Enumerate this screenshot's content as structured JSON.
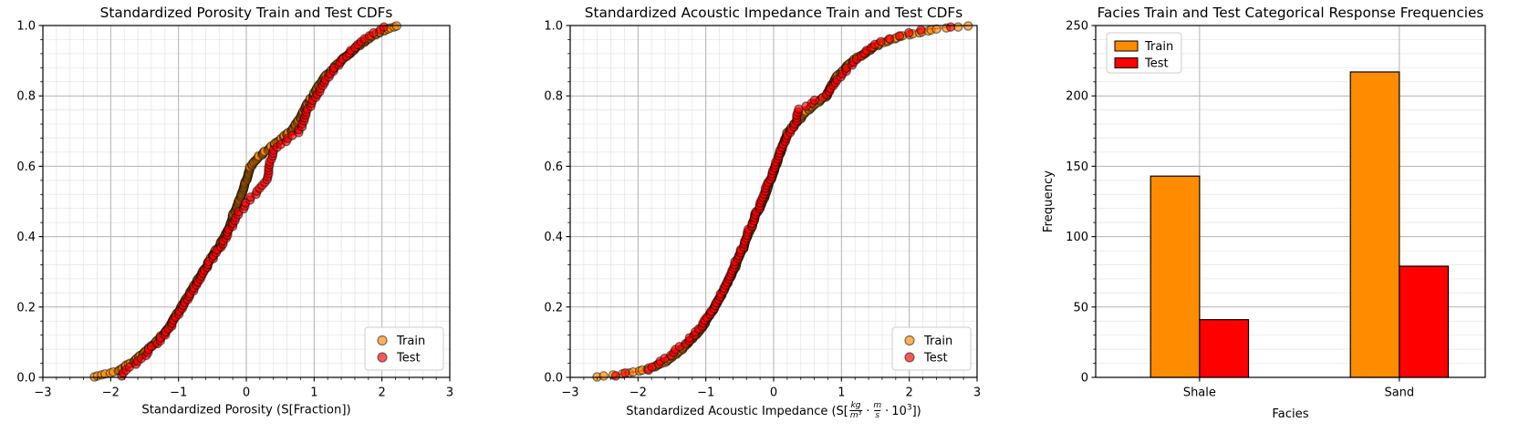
{
  "figure": {
    "background": "#ffffff",
    "text_color": "#000000",
    "grid_major_color": "#b2b2b2",
    "grid_minor_color": "#e3e3e3",
    "spine_color": "#000000"
  },
  "chart_data": [
    {
      "type": "scatter_cdf",
      "title": "Standardized Porosity Train and Test CDFs",
      "xlabel": "Standardized Porosity (S[Fraction])",
      "ylabel": "",
      "xlim": [
        -3,
        3
      ],
      "ylim": [
        0,
        1
      ],
      "xticks": [
        -3,
        -2,
        -1,
        0,
        1,
        2,
        3
      ],
      "xtick_labels": [
        "−3",
        "−2",
        "−1",
        "0",
        "1",
        "2",
        "3"
      ],
      "yticks": [
        0,
        0.2,
        0.4,
        0.6,
        0.8,
        1
      ],
      "ytick_labels": [
        "0.0",
        "0.2",
        "0.4",
        "0.6",
        "0.8",
        "1.0"
      ],
      "x_minor_step": 0.2,
      "y_minor_step": 0.04,
      "grid": true,
      "legend": {
        "loc": "lower right",
        "marker": "circle",
        "labels": [
          "Train",
          "Test"
        ]
      },
      "series": [
        {
          "name": "Train",
          "color": "#ff8c00",
          "n_points": 360,
          "quantile_p": [
            0,
            0.01,
            0.02,
            0.05,
            0.08,
            0.1,
            0.15,
            0.2,
            0.25,
            0.3,
            0.35,
            0.4,
            0.45,
            0.5,
            0.55,
            0.6,
            0.63,
            0.67,
            0.7,
            0.75,
            0.8,
            0.85,
            0.9,
            0.95,
            0.98,
            1
          ],
          "quantile_x": [
            -2.25,
            -2.06,
            -1.87,
            -1.63,
            -1.45,
            -1.33,
            -1.12,
            -0.96,
            -0.8,
            -0.64,
            -0.49,
            -0.31,
            -0.21,
            -0.12,
            -0.02,
            0.06,
            0.2,
            0.47,
            0.66,
            0.83,
            0.97,
            1.15,
            1.38,
            1.7,
            1.95,
            2.25
          ]
        },
        {
          "name": "Test",
          "color": "#ff0000",
          "n_points": 120,
          "quantile_p": [
            0,
            0.02,
            0.05,
            0.08,
            0.1,
            0.15,
            0.2,
            0.25,
            0.3,
            0.35,
            0.4,
            0.45,
            0.5,
            0.53,
            0.56,
            0.6,
            0.65,
            0.7,
            0.75,
            0.8,
            0.85,
            0.9,
            0.95,
            0.98,
            1
          ],
          "quantile_x": [
            -1.83,
            -1.78,
            -1.55,
            -1.42,
            -1.3,
            -1.1,
            -0.95,
            -0.78,
            -0.62,
            -0.47,
            -0.28,
            -0.18,
            0.02,
            0.18,
            0.31,
            0.33,
            0.42,
            0.78,
            0.88,
            1.02,
            1.18,
            1.4,
            1.65,
            1.9,
            2.06
          ]
        }
      ]
    },
    {
      "type": "scatter_cdf",
      "title": "Standardized Acoustic Impedance Train and Test CDFs",
      "xlabel": "Standardized Acoustic Impedance (S[kg/m³ · m/s · 10³])",
      "xlabel_parts": {
        "prefix": "Standardized Acoustic Impedance (S[",
        "frac1_num": "kg",
        "frac1_den": "m³",
        "dot": "·",
        "frac2_num": "m",
        "frac2_den": "s",
        "pow_base": "10",
        "pow_exp": "3",
        "suffix": "])"
      },
      "ylabel": "",
      "xlim": [
        -3,
        3
      ],
      "ylim": [
        0,
        1
      ],
      "xticks": [
        -3,
        -2,
        -1,
        0,
        1,
        2,
        3
      ],
      "xtick_labels": [
        "−3",
        "−2",
        "−1",
        "0",
        "1",
        "2",
        "3"
      ],
      "yticks": [
        0,
        0.2,
        0.4,
        0.6,
        0.8,
        1
      ],
      "ytick_labels": [
        "0.0",
        "0.2",
        "0.4",
        "0.6",
        "0.8",
        "1.0"
      ],
      "x_minor_step": 0.2,
      "y_minor_step": 0.04,
      "grid": true,
      "legend": {
        "loc": "lower right",
        "marker": "circle",
        "labels": [
          "Train",
          "Test"
        ]
      },
      "series": [
        {
          "name": "Train",
          "color": "#ff8c00",
          "n_points": 360,
          "quantile_p": [
            0,
            0.005,
            0.01,
            0.02,
            0.03,
            0.05,
            0.08,
            0.1,
            0.15,
            0.2,
            0.25,
            0.3,
            0.35,
            0.4,
            0.45,
            0.5,
            0.55,
            0.6,
            0.65,
            0.7,
            0.75,
            0.8,
            0.85,
            0.9,
            0.95,
            0.97,
            0.99,
            1
          ],
          "quantile_x": [
            -2.64,
            -2.45,
            -2.2,
            -1.95,
            -1.75,
            -1.55,
            -1.35,
            -1.25,
            -1.03,
            -0.87,
            -0.73,
            -0.6,
            -0.5,
            -0.38,
            -0.29,
            -0.17,
            -0.07,
            0.03,
            0.12,
            0.22,
            0.45,
            0.77,
            0.92,
            1.15,
            1.58,
            1.9,
            2.4,
            2.96
          ]
        },
        {
          "name": "Test",
          "color": "#ff0000",
          "n_points": 120,
          "quantile_p": [
            0,
            0.01,
            0.02,
            0.05,
            0.08,
            0.1,
            0.15,
            0.2,
            0.25,
            0.3,
            0.35,
            0.4,
            0.45,
            0.5,
            0.55,
            0.6,
            0.65,
            0.7,
            0.73,
            0.76,
            0.8,
            0.85,
            0.9,
            0.95,
            0.99,
            1
          ],
          "quantile_x": [
            -2.33,
            -2.28,
            -1.85,
            -1.62,
            -1.42,
            -1.28,
            -1.05,
            -0.88,
            -0.74,
            -0.61,
            -0.51,
            -0.39,
            -0.3,
            -0.18,
            -0.08,
            0.02,
            0.11,
            0.25,
            0.33,
            0.36,
            0.75,
            0.95,
            1.2,
            1.5,
            2.2,
            2.9
          ]
        }
      ]
    },
    {
      "type": "bar",
      "title": "Facies Train and Test Categorical Response Frequencies",
      "xlabel": "Facies",
      "ylabel": "Frequency",
      "categories": [
        "Shale",
        "Sand"
      ],
      "xlim": [
        -0.52,
        1.43
      ],
      "ylim": [
        0,
        250
      ],
      "yticks": [
        0,
        50,
        100,
        150,
        200,
        250
      ],
      "ytick_labels": [
        "0",
        "50",
        "100",
        "150",
        "200",
        "250"
      ],
      "y_minor_step": 10,
      "bar_width": 0.245,
      "grid": true,
      "legend": {
        "loc": "upper left",
        "marker": "rect",
        "labels": [
          "Train",
          "Test"
        ]
      },
      "series": [
        {
          "name": "Train",
          "color": "#ff8c00",
          "values": [
            143,
            217
          ]
        },
        {
          "name": "Test",
          "color": "#ff0000",
          "values": [
            41,
            79
          ]
        }
      ]
    }
  ]
}
